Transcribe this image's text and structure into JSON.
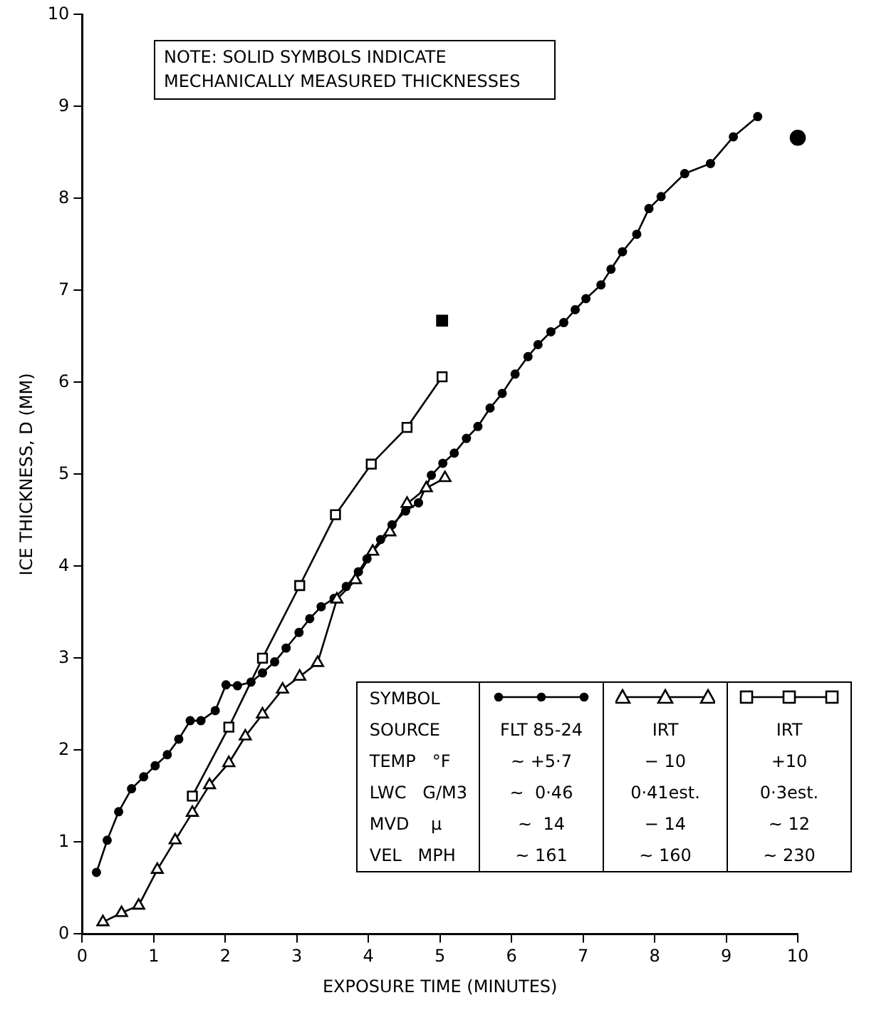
{
  "chart_data": {
    "type": "line",
    "xlabel": "EXPOSURE TIME (MINUTES)",
    "ylabel": "ICE THICKNESS, D (MM)",
    "xlim": [
      0,
      10
    ],
    "xticks": [
      0,
      1,
      2,
      3,
      4,
      5,
      6,
      7,
      8,
      9,
      10
    ],
    "ylim": [
      0,
      10
    ],
    "yticks": [
      0,
      1,
      2,
      3,
      4,
      5,
      6,
      7,
      8,
      9,
      10
    ],
    "grid": false,
    "legend": "bottom right",
    "annotations": [
      "NOTE: SOLID SYMBOLS INDICATE MECHANICALLY MEASURED THICKNESSES",
      "SYMBOL",
      "SOURCE",
      "TEMP   °F",
      "~ +5·7",
      "− 10",
      "+10",
      "LWC   G/M3",
      "~  0·46",
      "0·41est.",
      "0·3est.",
      "MVD    μ",
      "~  14",
      "− 14",
      "~ 12",
      "VEL   MPH",
      "~ 161",
      "~ 160",
      "~ 230"
    ],
    "series": [
      {
        "name": "FLT 85-24",
        "marker": "circle",
        "color": "#000000",
        "x": [
          0.2,
          0.35,
          0.51,
          0.69,
          0.86,
          1.02,
          1.19,
          1.35,
          1.51,
          1.66,
          1.86,
          2.01,
          2.17,
          2.36,
          2.52,
          2.69,
          2.85,
          3.03,
          3.18,
          3.34,
          3.52,
          3.69,
          3.86,
          3.98,
          4.17,
          4.33,
          4.52,
          4.7,
          4.88,
          5.04,
          5.2,
          5.37,
          5.53,
          5.7,
          5.87,
          6.05,
          6.23,
          6.37,
          6.55,
          6.73,
          6.89,
          7.04,
          7.25,
          7.39,
          7.55,
          7.75,
          7.92,
          8.09,
          8.42,
          8.78,
          9.1,
          9.44
        ],
        "values": [
          0.67,
          1.02,
          1.33,
          1.58,
          1.71,
          1.83,
          1.95,
          2.12,
          2.32,
          2.32,
          2.43,
          2.71,
          2.7,
          2.74,
          2.84,
          2.96,
          3.11,
          3.28,
          3.43,
          3.56,
          3.65,
          3.78,
          3.94,
          4.08,
          4.29,
          4.45,
          4.6,
          4.69,
          4.99,
          5.12,
          5.23,
          5.39,
          5.52,
          5.72,
          5.88,
          6.09,
          6.28,
          6.41,
          6.55,
          6.65,
          6.79,
          6.91,
          7.06,
          7.23,
          7.42,
          7.61,
          7.89,
          8.02,
          8.27,
          8.38,
          8.67,
          8.89
        ]
      },
      {
        "name": "IRT",
        "marker": "triangle",
        "color": "#000000",
        "x": [
          0.29,
          0.55,
          0.79,
          1.05,
          1.3,
          1.54,
          1.78,
          2.05,
          2.28,
          2.52,
          2.8,
          3.04,
          3.29,
          3.56,
          3.82,
          4.06,
          4.3,
          4.54,
          4.81,
          5.07
        ],
        "values": [
          0.13,
          0.23,
          0.31,
          0.7,
          1.02,
          1.32,
          1.62,
          1.86,
          2.15,
          2.39,
          2.66,
          2.8,
          2.95,
          3.64,
          3.85,
          4.16,
          4.37,
          4.68,
          4.85,
          4.96
        ]
      },
      {
        "name": "IRT",
        "marker": "square",
        "color": "#000000",
        "x": [
          1.54,
          2.05,
          2.52,
          3.04,
          3.54,
          4.04,
          4.54,
          5.03
        ],
        "values": [
          1.5,
          2.25,
          3.0,
          3.79,
          4.56,
          5.11,
          5.51,
          6.06
        ]
      },
      {
        "type": "scatter",
        "marker": "square",
        "color": "#000000",
        "x": [
          5.03
        ],
        "values": [
          6.67
        ]
      },
      {
        "type": "scatter",
        "marker": "circle",
        "color": "#000000",
        "x": [
          10
        ],
        "values": [
          8.66
        ]
      }
    ]
  }
}
